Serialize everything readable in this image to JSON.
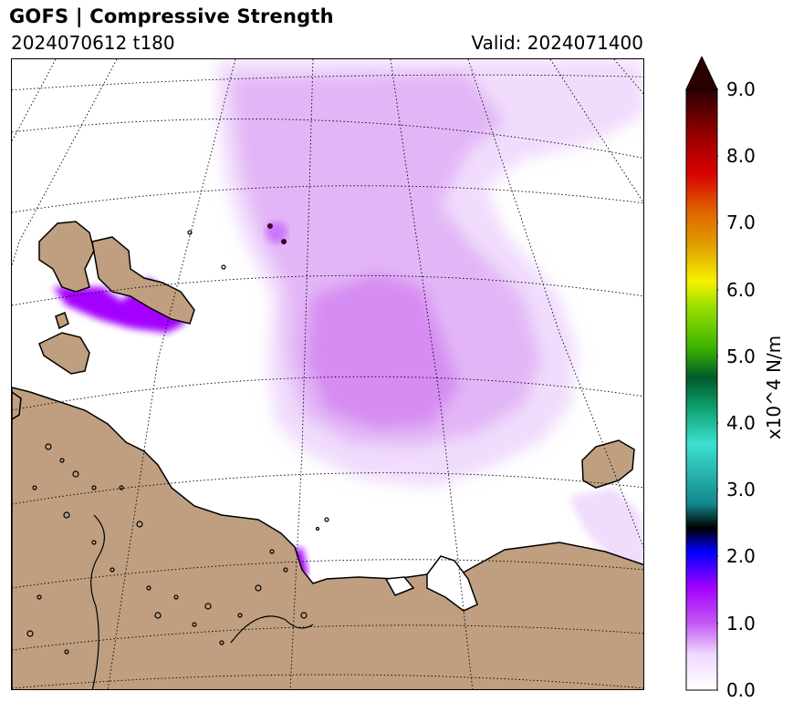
{
  "header": {
    "title": "GOFS  |  Compressive Strength",
    "run": "2024070612 t180",
    "valid": "Valid: 2024071400"
  },
  "colorbar": {
    "label": "x10^4 N/m",
    "ticks": [
      "0.0",
      "1.0",
      "2.0",
      "3.0",
      "4.0",
      "5.0",
      "6.0",
      "7.0",
      "8.0",
      "9.0"
    ],
    "extend": "max",
    "colors": [
      "#ffffff",
      "#f0d8ff",
      "#dc9cf6",
      "#c45cf2",
      "#a400ff",
      "#0000ff",
      "#000000",
      "#13868c",
      "#3de0d0",
      "#0fa070",
      "#005a2a",
      "#3cb400",
      "#9ee000",
      "#f6f000",
      "#e0a000",
      "#e06000",
      "#d80000",
      "#9c0000",
      "#4c0000",
      "#2a0000"
    ]
  },
  "map": {
    "land_color": "#bf9f7f",
    "ice_light": "#f0dcfc",
    "ice_mid": "#e2b6f6",
    "ice_strong": "#d68cf2",
    "ice_peak": "#a400ff"
  }
}
